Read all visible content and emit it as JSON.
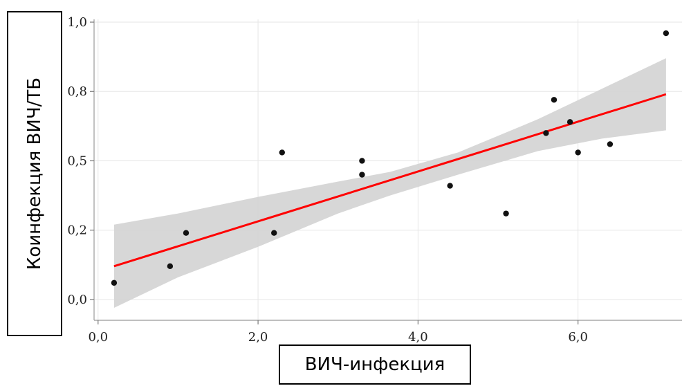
{
  "chart_data": {
    "type": "scatter",
    "title": "",
    "xlabel": "ВИЧ-инфекция",
    "ylabel": "Коинфекция ВИЧ/ТБ",
    "xlim": [
      -0.05,
      7.3
    ],
    "ylim": [
      -0.075,
      1.01
    ],
    "x_ticks": [
      0.0,
      2.0,
      4.0,
      6.0
    ],
    "x_tick_labels": [
      "0,0",
      "2,0",
      "4,0",
      "6,0"
    ],
    "y_ticks": [
      0.0,
      0.25,
      0.5,
      0.75,
      1.0
    ],
    "y_tick_labels": [
      "0,0",
      "0,2",
      "0,5",
      "0,8",
      "1,0"
    ],
    "grid": true,
    "points": [
      {
        "x": 0.2,
        "y": 0.06
      },
      {
        "x": 0.9,
        "y": 0.12
      },
      {
        "x": 1.1,
        "y": 0.24
      },
      {
        "x": 2.2,
        "y": 0.24
      },
      {
        "x": 2.3,
        "y": 0.53
      },
      {
        "x": 3.3,
        "y": 0.5
      },
      {
        "x": 3.3,
        "y": 0.45
      },
      {
        "x": 4.4,
        "y": 0.41
      },
      {
        "x": 5.1,
        "y": 0.31
      },
      {
        "x": 5.6,
        "y": 0.6
      },
      {
        "x": 5.7,
        "y": 0.72
      },
      {
        "x": 5.9,
        "y": 0.64
      },
      {
        "x": 6.0,
        "y": 0.53
      },
      {
        "x": 6.4,
        "y": 0.56
      },
      {
        "x": 7.1,
        "y": 0.96
      }
    ],
    "trend_line": {
      "x": [
        0.2,
        7.1
      ],
      "y": [
        0.12,
        0.74
      ],
      "color": "#ff0000"
    },
    "confidence_band": {
      "x": [
        0.2,
        1.0,
        2.0,
        3.0,
        3.65,
        4.5,
        5.5,
        6.3,
        7.1
      ],
      "lower": [
        -0.03,
        0.08,
        0.19,
        0.31,
        0.375,
        0.45,
        0.535,
        0.58,
        0.61
      ],
      "upper": [
        0.27,
        0.31,
        0.37,
        0.425,
        0.46,
        0.53,
        0.65,
        0.76,
        0.87
      ],
      "color": "#d3d3d3"
    }
  }
}
